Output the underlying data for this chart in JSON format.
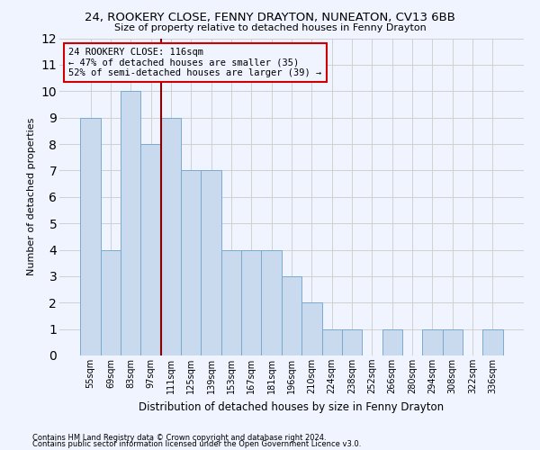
{
  "title": "24, ROOKERY CLOSE, FENNY DRAYTON, NUNEATON, CV13 6BB",
  "subtitle": "Size of property relative to detached houses in Fenny Drayton",
  "xlabel": "Distribution of detached houses by size in Fenny Drayton",
  "ylabel": "Number of detached properties",
  "categories": [
    "55sqm",
    "69sqm",
    "83sqm",
    "97sqm",
    "111sqm",
    "125sqm",
    "139sqm",
    "153sqm",
    "167sqm",
    "181sqm",
    "196sqm",
    "210sqm",
    "224sqm",
    "238sqm",
    "252sqm",
    "266sqm",
    "280sqm",
    "294sqm",
    "308sqm",
    "322sqm",
    "336sqm"
  ],
  "values": [
    9,
    4,
    10,
    8,
    9,
    7,
    7,
    4,
    4,
    4,
    3,
    2,
    1,
    1,
    0,
    1,
    0,
    1,
    1,
    0,
    1
  ],
  "bar_color": "#c9d9ee",
  "bar_edge_color": "#7aaad0",
  "grid_color": "#d0d0d0",
  "annotation_line1": "24 ROOKERY CLOSE: 116sqm",
  "annotation_line2": "← 47% of detached houses are smaller (35)",
  "annotation_line3": "52% of semi-detached houses are larger (39) →",
  "vline_index": 3.5,
  "vline_color": "#880000",
  "box_color": "#cc0000",
  "ylim": [
    0,
    12
  ],
  "yticks": [
    0,
    1,
    2,
    3,
    4,
    5,
    6,
    7,
    8,
    9,
    10,
    11,
    12
  ],
  "footer1": "Contains HM Land Registry data © Crown copyright and database right 2024.",
  "footer2": "Contains public sector information licensed under the Open Government Licence v3.0.",
  "bg_color": "#f0f4ff"
}
